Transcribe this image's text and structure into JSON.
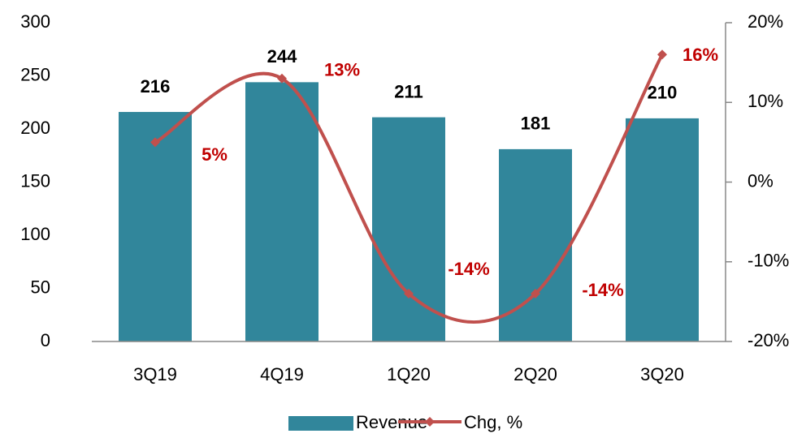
{
  "chart_data": {
    "type": "bar_line",
    "categories": [
      "3Q19",
      "4Q19",
      "1Q20",
      "2Q20",
      "3Q20"
    ],
    "series": [
      {
        "name": "Revenue",
        "type": "bar",
        "color": "#31869b",
        "values": [
          216,
          244,
          211,
          181,
          210
        ]
      },
      {
        "name": "Chg, %",
        "type": "line",
        "axis": "y2",
        "color": "#c0504d",
        "values": [
          5,
          13,
          -14,
          -14,
          16
        ],
        "value_labels": [
          "5%",
          "13%",
          "-14%",
          "-14%",
          "16%"
        ]
      }
    ],
    "ylim": [
      0,
      300
    ],
    "yticks": [
      0,
      50,
      100,
      150,
      200,
      250,
      300
    ],
    "y2lim": [
      -20,
      20
    ],
    "y2ticks": [
      {
        "value": -20,
        "label": "-20%"
      },
      {
        "value": -10,
        "label": "-10%"
      },
      {
        "value": 0,
        "label": "0%"
      },
      {
        "value": 10,
        "label": "10%"
      },
      {
        "value": 20,
        "label": "20%"
      }
    ],
    "legend": "bottom"
  }
}
